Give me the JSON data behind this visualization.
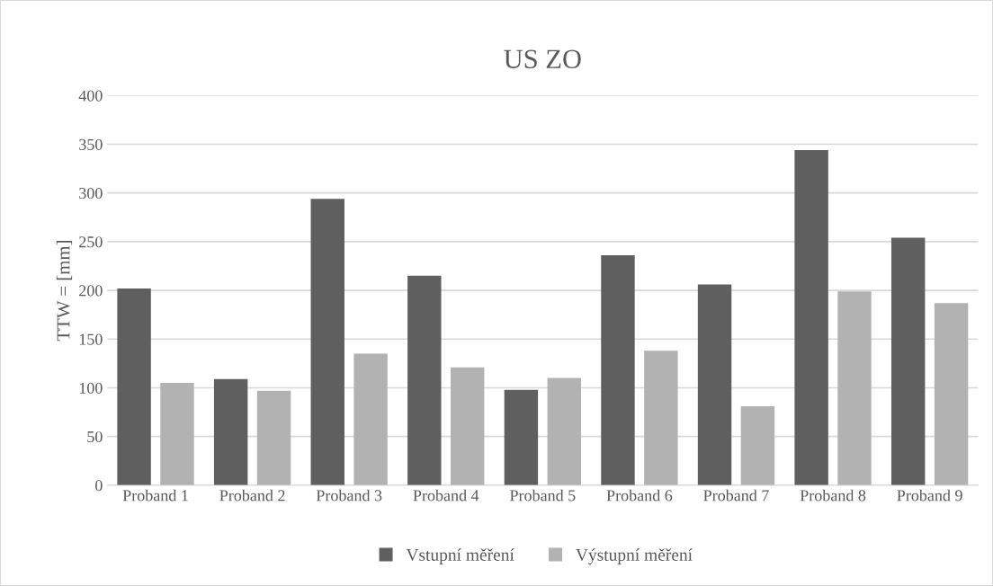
{
  "chart_data": {
    "type": "bar",
    "title": "US ZO",
    "ylabel": "TTW = [mm]",
    "categories": [
      "Proband 1",
      "Proband 2",
      "Proband 3",
      "Proband 4",
      "Proband 5",
      "Proband 6",
      "Proband 7",
      "Proband 8",
      "Proband 9"
    ],
    "series": [
      {
        "name": "Vstupní měření",
        "color": "#5f5f5f",
        "values": [
          202,
          109,
          294,
          215,
          98,
          236,
          206,
          344,
          254
        ]
      },
      {
        "name": "Výstupní měření",
        "color": "#b2b2b2",
        "values": [
          105,
          97,
          135,
          121,
          110,
          138,
          81,
          199,
          187
        ]
      }
    ],
    "ylim": [
      0,
      400
    ],
    "yticks": [
      0,
      50,
      100,
      150,
      200,
      250,
      300,
      350,
      400
    ],
    "grid": "y",
    "legend": "bottom"
  }
}
